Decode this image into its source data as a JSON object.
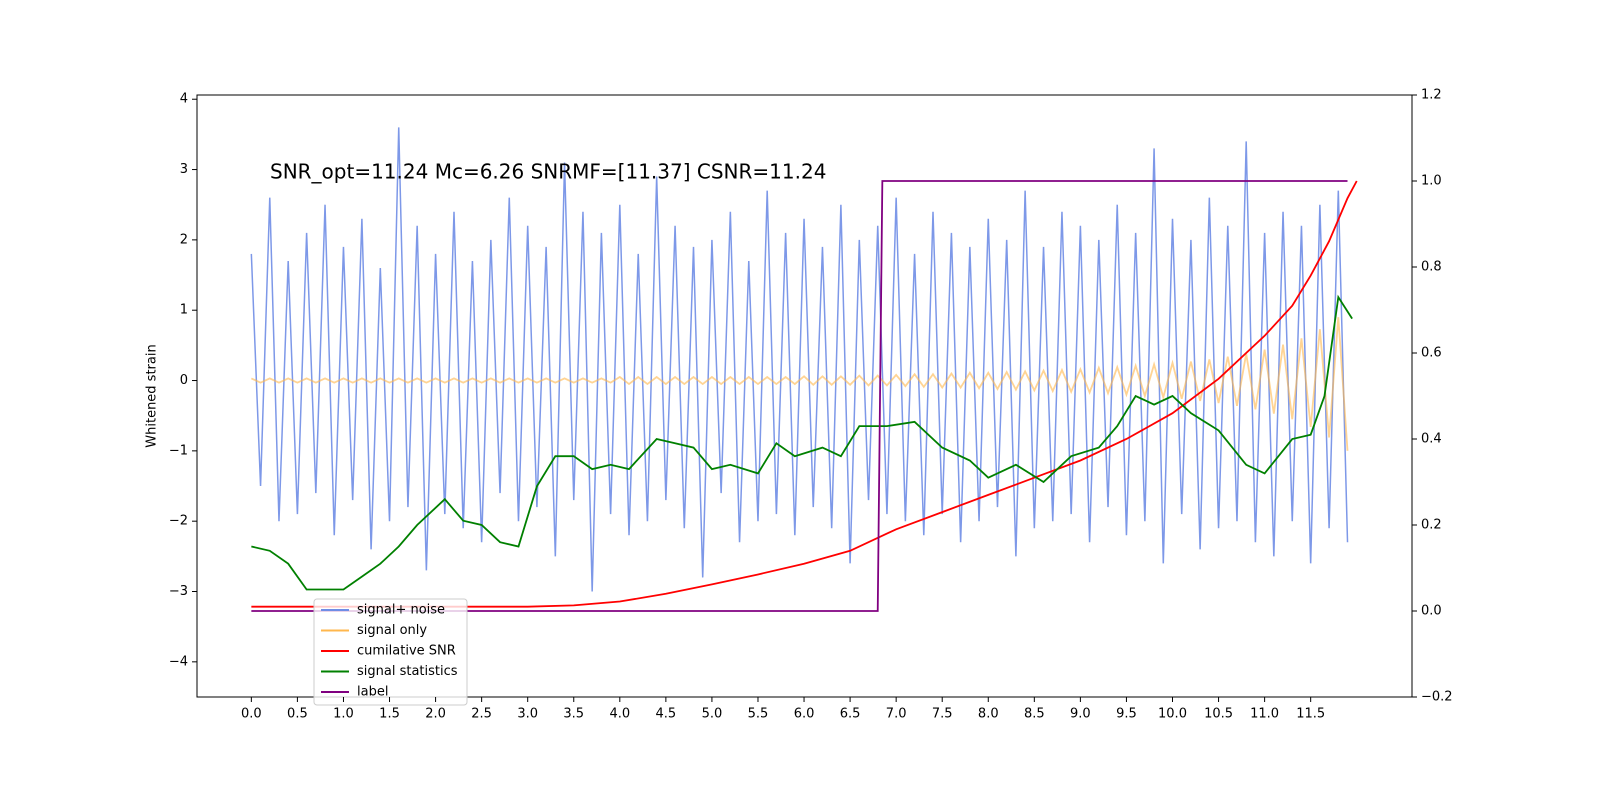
{
  "chart_data": {
    "type": "line",
    "annotation": "SNR_opt=11.24 Mc=6.26    SNRMF=[11.37] CSNR=11.24",
    "ylabel": "Whitened strain",
    "xlim": [
      -0.59,
      12.6
    ],
    "ylim": [
      -4.5,
      4.06
    ],
    "y2lim": [
      -0.2,
      1.2
    ],
    "xticks": [
      {
        "value": 0,
        "label": "0.0"
      },
      0.5,
      {
        "value": 1,
        "label": "1.0"
      },
      1.5,
      {
        "value": 2,
        "label": "2.0"
      },
      2.5,
      {
        "value": 3,
        "label": "3.0"
      },
      3.5,
      {
        "value": 4,
        "label": "4.0"
      },
      4.5,
      {
        "value": 5,
        "label": "5.0"
      },
      5.5,
      {
        "value": 6,
        "label": "6.0"
      },
      6.5,
      {
        "value": 7,
        "label": "7.0"
      },
      7.5,
      {
        "value": 8,
        "label": "8.0"
      },
      8.5,
      {
        "value": 9,
        "label": "9.0"
      },
      9.5,
      {
        "value": 10,
        "label": "10.0"
      },
      10.5,
      {
        "value": 11,
        "label": "11.0"
      },
      11.5
    ],
    "yticks": [
      {
        "value": -4,
        "label": "−4"
      },
      {
        "value": -3,
        "label": "−3"
      },
      {
        "value": -2,
        "label": "−2"
      },
      {
        "value": -1,
        "label": "−1"
      },
      0,
      1,
      2,
      3,
      4
    ],
    "y2ticks": [
      {
        "value": -0.2,
        "label": "−0.2"
      },
      {
        "value": 0,
        "label": "0.0"
      },
      0.2,
      0.4,
      0.6,
      0.8,
      {
        "value": 1,
        "label": "1.0"
      },
      1.2
    ],
    "legend": "lower left",
    "x": [
      0,
      0.1,
      0.2,
      0.3,
      0.4,
      0.5,
      0.6,
      0.7,
      0.8,
      0.9,
      1,
      1.1,
      1.2,
      1.3,
      1.4,
      1.5,
      1.6,
      1.7,
      1.8,
      1.9,
      2,
      2.1,
      2.2,
      2.3,
      2.4,
      2.5,
      2.6,
      2.7,
      2.8,
      2.9,
      3,
      3.1,
      3.2,
      3.3,
      3.4,
      3.5,
      3.6,
      3.7,
      3.8,
      3.9,
      4,
      4.1,
      4.2,
      4.3,
      4.4,
      4.5,
      4.6,
      4.7,
      4.8,
      4.9,
      5,
      5.1,
      5.2,
      5.3,
      5.4,
      5.5,
      5.6,
      5.7,
      5.8,
      5.9,
      6,
      6.1,
      6.2,
      6.3,
      6.4,
      6.5,
      6.6,
      6.7,
      6.8,
      6.9,
      7,
      7.1,
      7.2,
      7.3,
      7.4,
      7.5,
      7.6,
      7.7,
      7.8,
      7.9,
      8,
      8.1,
      8.2,
      8.3,
      8.4,
      8.5,
      8.6,
      8.7,
      8.8,
      8.9,
      9,
      9.1,
      9.2,
      9.3,
      9.4,
      9.5,
      9.6,
      9.7,
      9.8,
      9.9,
      10,
      10.1,
      10.2,
      10.3,
      10.4,
      10.5,
      10.6,
      10.7,
      10.8,
      10.9,
      11,
      11.1,
      11.2,
      11.3,
      11.4,
      11.5,
      11.6,
      11.7,
      11.8,
      11.9
    ],
    "series": [
      {
        "name": "signal+ noise",
        "color": "#6f8de6",
        "values": [
          1.8,
          -1.5,
          2.6,
          -2.0,
          1.7,
          -1.9,
          2.1,
          -1.6,
          2.5,
          -2.2,
          1.9,
          -1.7,
          2.3,
          -2.4,
          1.6,
          -2.0,
          3.6,
          -1.8,
          2.2,
          -2.7,
          1.8,
          -1.9,
          2.4,
          -2.1,
          1.7,
          -2.3,
          2.0,
          -1.6,
          2.6,
          -2.0,
          2.2,
          -1.8,
          1.9,
          -2.5,
          3.1,
          -1.7,
          2.4,
          -3.0,
          2.1,
          -1.9,
          2.5,
          -2.2,
          1.8,
          -2.0,
          2.9,
          -1.7,
          2.2,
          -2.1,
          1.9,
          -2.8,
          2.0,
          -1.6,
          2.4,
          -2.3,
          1.7,
          -2.0,
          2.7,
          -1.9,
          2.1,
          -2.2,
          2.3,
          -1.8,
          1.9,
          -2.1,
          2.5,
          -2.6,
          2.0,
          -1.7,
          2.2,
          -1.9,
          2.6,
          -2.0,
          1.8,
          -2.2,
          2.4,
          -1.9,
          2.1,
          -2.3,
          1.9,
          -2.0,
          2.3,
          -1.8,
          2.0,
          -2.5,
          2.7,
          -2.1,
          1.9,
          -2.0,
          2.4,
          -1.9,
          2.2,
          -2.3,
          2.0,
          -1.8,
          2.5,
          -2.2,
          2.1,
          -2.0,
          3.3,
          -2.6,
          2.3,
          -1.9,
          2.0,
          -2.4,
          2.6,
          -2.1,
          2.2,
          -2.0,
          3.4,
          -2.3,
          2.1,
          -2.5,
          2.4,
          -2.0,
          2.2,
          -2.6,
          2.5,
          -2.1,
          2.7,
          -2.3
        ]
      },
      {
        "name": "signal only",
        "color": "#ffb74d",
        "values": [
          0.03,
          -0.03,
          0.03,
          -0.03,
          0.03,
          -0.03,
          0.03,
          -0.03,
          0.03,
          -0.03,
          0.03,
          -0.03,
          0.03,
          -0.03,
          0.03,
          -0.03,
          0.03,
          -0.03,
          0.03,
          -0.03,
          0.03,
          -0.03,
          0.03,
          -0.03,
          0.03,
          -0.03,
          0.03,
          -0.03,
          0.03,
          -0.03,
          0.03,
          -0.03,
          0.03,
          -0.03,
          0.03,
          -0.03,
          0.03,
          -0.03,
          0.03,
          -0.03,
          0.05,
          -0.05,
          0.05,
          -0.05,
          0.05,
          -0.05,
          0.05,
          -0.05,
          0.05,
          -0.05,
          0.05,
          -0.05,
          0.05,
          -0.05,
          0.05,
          -0.05,
          0.05,
          -0.05,
          0.05,
          -0.05,
          0.06,
          -0.06,
          0.06,
          -0.06,
          0.06,
          -0.06,
          0.07,
          -0.07,
          0.07,
          -0.07,
          0.08,
          -0.08,
          0.09,
          -0.09,
          0.09,
          -0.1,
          0.1,
          -0.1,
          0.11,
          -0.11,
          0.11,
          -0.12,
          0.12,
          -0.13,
          0.13,
          -0.14,
          0.14,
          -0.15,
          0.15,
          -0.16,
          0.16,
          -0.17,
          0.18,
          -0.18,
          0.19,
          -0.2,
          0.21,
          -0.22,
          0.23,
          -0.24,
          0.25,
          -0.26,
          0.27,
          -0.29,
          0.3,
          -0.32,
          0.34,
          -0.36,
          0.38,
          -0.41,
          0.44,
          -0.47,
          0.51,
          -0.55,
          0.6,
          -0.66,
          0.73,
          -0.81,
          0.9,
          -1.0
        ]
      },
      {
        "name": "cumilative SNR",
        "color": "#ff0000",
        "axis": "y2",
        "x": [
          0,
          1,
          2,
          3,
          3.5,
          4,
          4.5,
          5,
          5.5,
          6,
          6.5,
          7,
          7.5,
          8,
          8.5,
          9,
          9.5,
          10,
          10.5,
          11,
          11.3,
          11.5,
          11.7,
          11.9,
          12
        ],
        "values": [
          0.01,
          0.01,
          0.01,
          0.01,
          0.013,
          0.022,
          0.04,
          0.062,
          0.085,
          0.11,
          0.14,
          0.19,
          0.23,
          0.27,
          0.31,
          0.35,
          0.4,
          0.46,
          0.54,
          0.64,
          0.71,
          0.78,
          0.86,
          0.96,
          1.0
        ]
      },
      {
        "name": "signal statistics",
        "color": "#008000",
        "axis": "y2",
        "x": [
          0,
          0.2,
          0.4,
          0.6,
          0.8,
          1,
          1.2,
          1.4,
          1.6,
          1.8,
          2.1,
          2.3,
          2.5,
          2.7,
          2.9,
          3.1,
          3.3,
          3.5,
          3.7,
          3.9,
          4.1,
          4.4,
          4.6,
          4.8,
          5,
          5.2,
          5.5,
          5.7,
          5.9,
          6.2,
          6.4,
          6.6,
          6.9,
          7.2,
          7.5,
          7.8,
          8,
          8.3,
          8.6,
          8.9,
          9.2,
          9.4,
          9.6,
          9.8,
          10,
          10.2,
          10.5,
          10.8,
          11,
          11.3,
          11.5,
          11.65,
          11.8,
          11.95
        ],
        "values": [
          0.15,
          0.14,
          0.11,
          0.05,
          0.05,
          0.05,
          0.08,
          0.11,
          0.15,
          0.2,
          0.26,
          0.21,
          0.2,
          0.16,
          0.15,
          0.29,
          0.36,
          0.36,
          0.33,
          0.34,
          0.33,
          0.4,
          0.39,
          0.38,
          0.33,
          0.34,
          0.32,
          0.39,
          0.36,
          0.38,
          0.36,
          0.43,
          0.43,
          0.44,
          0.38,
          0.35,
          0.31,
          0.34,
          0.3,
          0.36,
          0.38,
          0.43,
          0.5,
          0.48,
          0.5,
          0.46,
          0.42,
          0.34,
          0.32,
          0.4,
          0.41,
          0.5,
          0.73,
          0.68
        ]
      },
      {
        "name": "label",
        "color": "#800080",
        "axis": "y2",
        "x": [
          0,
          6.8,
          6.85,
          11.9
        ],
        "values": [
          0,
          0,
          1,
          1
        ]
      }
    ]
  }
}
